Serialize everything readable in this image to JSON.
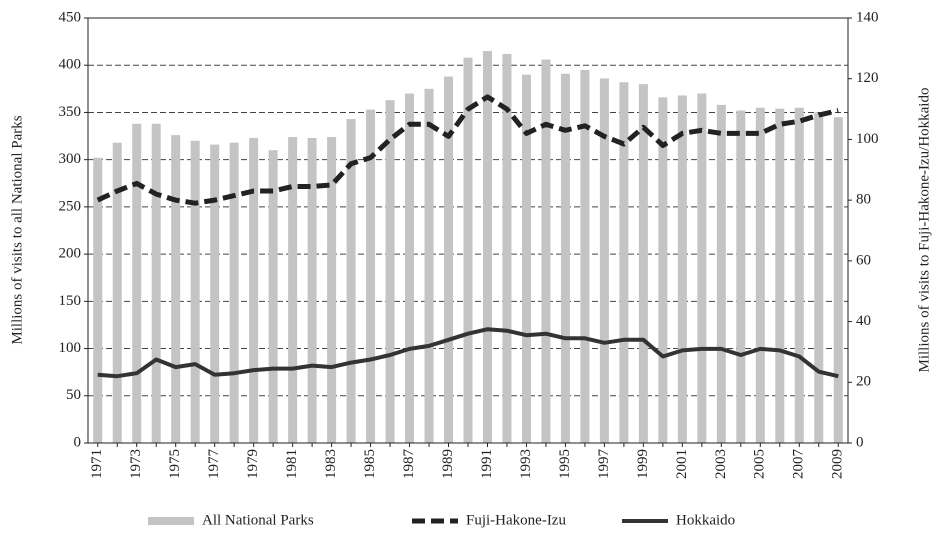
{
  "chart_data": {
    "type": "bar",
    "ylabel": "Millions of visits to all National Parks",
    "y2label": "Millions of visits to Fuji-Hakone-Izu/Hokkaido",
    "categories": [
      "1971",
      null,
      "1973",
      null,
      "1975",
      null,
      "1977",
      null,
      "1979",
      null,
      "1981",
      null,
      "1983",
      null,
      "1985",
      null,
      "1987",
      null,
      "1989",
      null,
      "1991",
      null,
      "1993",
      null,
      "1995",
      null,
      "1997",
      null,
      "1999",
      null,
      "2001",
      null,
      "2003",
      null,
      "2005",
      null,
      "2007",
      null,
      "2009"
    ],
    "series": [
      {
        "name": "All National Parks",
        "color": "#c4c4c4",
        "mark": "bar",
        "values": [
          302,
          318,
          338,
          338,
          326,
          320,
          316,
          318,
          323,
          310,
          324,
          323,
          324,
          343,
          353,
          363,
          370,
          375,
          388,
          408,
          415,
          412,
          390,
          406,
          391,
          395,
          386,
          382,
          380,
          366,
          368,
          370,
          358,
          352,
          355,
          354,
          355,
          350,
          345
        ]
      },
      {
        "name": "Fuji-Hakone-Izu",
        "color": "#222222",
        "mark": "line",
        "dashed": true,
        "axis": "y2",
        "values": [
          80,
          83,
          85.5,
          82,
          80,
          79,
          80,
          81.5,
          83,
          83,
          84.5,
          84.5,
          85,
          92,
          94,
          100,
          105,
          105,
          101,
          110,
          114,
          110,
          102,
          105,
          103,
          104.5,
          101,
          98.5,
          104,
          98,
          102,
          103,
          102,
          102,
          102,
          105,
          106,
          108,
          109.5
        ]
      },
      {
        "name": "Hokkaido",
        "color": "#333333",
        "mark": "line",
        "dashed": false,
        "axis": "y2",
        "values": [
          22.5,
          22,
          23,
          27.5,
          25,
          26,
          22.5,
          23,
          24,
          24.5,
          24.5,
          25.5,
          25,
          26.5,
          27.5,
          29,
          31,
          32,
          34,
          36,
          37.5,
          37,
          35.5,
          36,
          34.5,
          34.5,
          33,
          34,
          34,
          28.5,
          30.5,
          31,
          31,
          29,
          31,
          30.5,
          28.5,
          23.5,
          22
        ]
      }
    ],
    "ylim": [
      0,
      450
    ],
    "yticks": [
      0,
      50,
      100,
      150,
      200,
      250,
      300,
      350,
      400,
      450
    ],
    "y2lim": [
      0,
      140
    ],
    "y2ticks": [
      0,
      20,
      40,
      60,
      80,
      100,
      120,
      140
    ],
    "grid": true,
    "legend": "bottom"
  }
}
